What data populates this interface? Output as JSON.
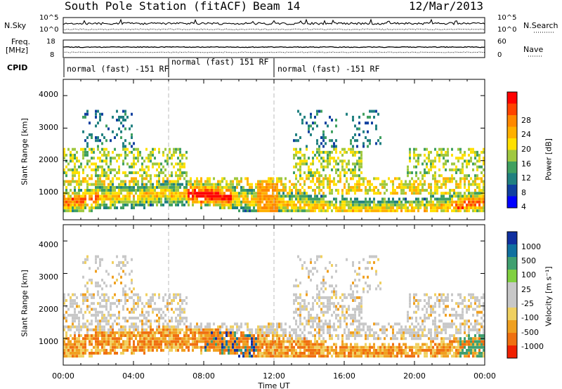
{
  "header": {
    "station": "South Pole Station (fitACF)",
    "beam": "Beam 14",
    "date": "12/Mar/2013"
  },
  "top_panels": {
    "nsky_label": "N.Sky",
    "nsearch_label": "N.Search",
    "freq_label_line1": "Freq.",
    "freq_label_line2": "[MHz]",
    "nave_label": "Nave",
    "cpid_label": "CPID",
    "noise_ticks": [
      "10^5",
      "10^0"
    ],
    "freq_ticks": [
      "18",
      "8"
    ],
    "nave_ticks": [
      "60",
      "0"
    ]
  },
  "cpid_segments": [
    {
      "label": "normal (fast) -151 RF",
      "start_hour": 0,
      "end_hour": 6
    },
    {
      "label": "normal (fast) 151 RF",
      "start_hour": 6,
      "end_hour": 12
    },
    {
      "label": "normal (fast) -151 RF",
      "start_hour": 12,
      "end_hour": 24
    }
  ],
  "chart_data": [
    {
      "type": "heatmap",
      "name": "power",
      "xlabel": "",
      "ylabel": "Slant Range [km]",
      "x_range_hours": [
        0,
        24
      ],
      "ylim": [
        180,
        4500
      ],
      "yticks": [
        "4000",
        "3000",
        "2000",
        "1000"
      ],
      "colorbar_label": "Power [dB]",
      "colorbar_ticks": [
        "28",
        "24",
        "20",
        "16",
        "12",
        "8",
        "4"
      ],
      "colorbar_colors": [
        "#ff0000",
        "#ff4400",
        "#ff8800",
        "#ffb000",
        "#ffe000",
        "#a0c840",
        "#40a060",
        "#208080",
        "#1040a0",
        "#0000ff"
      ]
    },
    {
      "type": "heatmap",
      "name": "velocity",
      "xlabel": "Time UT",
      "ylabel": "Slant Range [km]",
      "x_range_hours": [
        0,
        24
      ],
      "ylim": [
        180,
        4500
      ],
      "yticks": [
        "4000",
        "3000",
        "2000",
        "1000"
      ],
      "xticks": [
        "00:00",
        "04:00",
        "08:00",
        "12:00",
        "16:00",
        "20:00",
        "00:00"
      ],
      "colorbar_label": "Velocity [m s⁻¹]",
      "colorbar_ticks": [
        "1000",
        "500",
        "100",
        "25",
        "-25",
        "-100",
        "-500",
        "-1000"
      ],
      "colorbar_colors": [
        "#1030a0",
        "#1070a0",
        "#40a070",
        "#80d040",
        "#c8c8c8",
        "#c8c8c8",
        "#f0d060",
        "#f0a020",
        "#f07010",
        "#f02000"
      ]
    }
  ]
}
